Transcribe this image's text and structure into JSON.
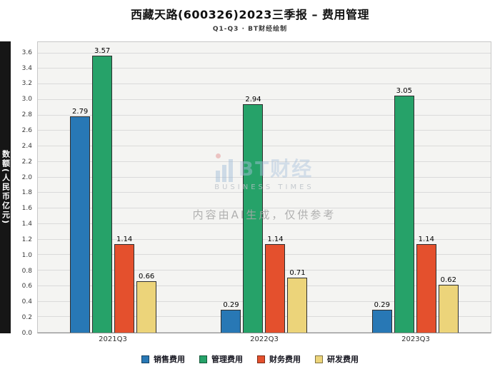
{
  "title": "西藏天路(600326)2023三季报 – 费用管理",
  "subtitle": "Q1-Q3 · BT财经绘制",
  "watermark": {
    "logo_text": "BT财经",
    "logo_subtext": "BUSINESS TIMES",
    "disclaimer": "内容由AI生成，仅供参考"
  },
  "chart_data": {
    "type": "bar",
    "title": "西藏天路(600326)2023三季报 – 费用管理",
    "subtitle": "Q1-Q3 · BT财经绘制",
    "xlabel": "",
    "ylabel": "数额(人民币亿元)",
    "categories": [
      "2021Q3",
      "2022Q3",
      "2023Q3"
    ],
    "series": [
      {
        "name": "销售费用",
        "color": "#2878b5",
        "values": [
          2.79,
          0.29,
          0.29
        ]
      },
      {
        "name": "管理费用",
        "color": "#26a269",
        "values": [
          3.57,
          2.94,
          3.05
        ]
      },
      {
        "name": "财务费用",
        "color": "#e4502d",
        "values": [
          1.14,
          1.14,
          1.14
        ]
      },
      {
        "name": "研发费用",
        "color": "#ecd47a",
        "values": [
          0.66,
          0.71,
          0.62
        ]
      }
    ],
    "ylim": [
      0,
      3.6
    ],
    "ytick_step": 0.2,
    "grid": true,
    "legend_position": "bottom"
  }
}
